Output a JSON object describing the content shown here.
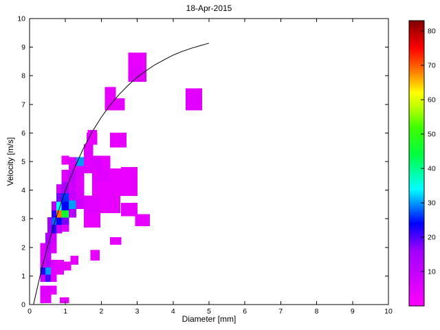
{
  "figure": {
    "title": "18-Apr-2015",
    "background": "#FFFFFF"
  },
  "chart_data": {
    "type": "heatmap",
    "title": "18-Apr-2015",
    "xlabel": "Diameter [mm]",
    "ylabel": "Velocity [m/s]",
    "xlim": [
      0,
      10
    ],
    "ylim": [
      0,
      10
    ],
    "xticks": [
      0,
      1,
      2,
      3,
      4,
      5,
      6,
      7,
      8,
      9,
      10
    ],
    "yticks": [
      0,
      1,
      2,
      3,
      4,
      5,
      6,
      7,
      8,
      9,
      10
    ],
    "grid": false,
    "plot_bg": "#FFFFFF",
    "axis_color": "#000000",
    "colorbar": {
      "position": "right",
      "min": 0,
      "max": 83,
      "ticks": [
        10,
        20,
        30,
        40,
        50,
        60,
        70,
        80
      ],
      "stops": [
        [
          0,
          "#FF00FF"
        ],
        [
          16,
          "#A000FF"
        ],
        [
          24,
          "#0000FF"
        ],
        [
          34,
          "#00FFFF"
        ],
        [
          44,
          "#00FF40"
        ],
        [
          52,
          "#40FF00"
        ],
        [
          58,
          "#C0FF00"
        ],
        [
          62,
          "#FFFF00"
        ],
        [
          68,
          "#FF8000"
        ],
        [
          75,
          "#FF0000"
        ],
        [
          83,
          "#800000"
        ]
      ]
    },
    "cells": [
      [
        0.3,
        0.05,
        0.15,
        0.2,
        4
      ],
      [
        0.45,
        0.05,
        0.15,
        0.2,
        5
      ],
      [
        0.3,
        0.25,
        0.15,
        0.2,
        6
      ],
      [
        0.45,
        0.25,
        0.15,
        0.2,
        5
      ],
      [
        0.85,
        0.05,
        0.25,
        0.2,
        4
      ],
      [
        0.3,
        0.45,
        0.15,
        0.2,
        5
      ],
      [
        0.45,
        0.45,
        0.15,
        0.2,
        6
      ],
      [
        0.6,
        0.35,
        0.15,
        0.3,
        4
      ],
      [
        0.3,
        0.8,
        0.15,
        0.25,
        10
      ],
      [
        0.45,
        0.8,
        0.15,
        0.25,
        20
      ],
      [
        0.3,
        1.05,
        0.15,
        0.25,
        22
      ],
      [
        0.45,
        1.05,
        0.15,
        0.25,
        30
      ],
      [
        0.3,
        1.3,
        0.15,
        0.25,
        8
      ],
      [
        0.45,
        1.3,
        0.15,
        0.25,
        12
      ],
      [
        0.6,
        0.8,
        0.15,
        0.5,
        5
      ],
      [
        0.6,
        1.3,
        0.15,
        0.25,
        6
      ],
      [
        0.75,
        1.05,
        0.2,
        0.5,
        4
      ],
      [
        0.95,
        1.2,
        0.2,
        0.3,
        4
      ],
      [
        1.15,
        1.4,
        0.2,
        0.3,
        4
      ],
      [
        1.7,
        1.55,
        0.25,
        0.35,
        4
      ],
      [
        0.3,
        1.55,
        0.15,
        0.3,
        6
      ],
      [
        0.45,
        1.55,
        0.15,
        0.3,
        10
      ],
      [
        0.3,
        1.85,
        0.15,
        0.3,
        5
      ],
      [
        0.45,
        1.85,
        0.15,
        0.3,
        12
      ],
      [
        0.45,
        2.15,
        0.15,
        0.35,
        14
      ],
      [
        0.6,
        1.8,
        0.15,
        0.35,
        6
      ],
      [
        0.6,
        2.15,
        0.15,
        0.35,
        8
      ],
      [
        2.25,
        2.1,
        0.3,
        0.25,
        4
      ],
      [
        0.5,
        2.5,
        0.12,
        0.3,
        16
      ],
      [
        0.62,
        2.5,
        0.13,
        0.3,
        22
      ],
      [
        0.75,
        2.5,
        0.15,
        0.3,
        10
      ],
      [
        0.9,
        2.55,
        0.2,
        0.25,
        6
      ],
      [
        0.5,
        2.8,
        0.12,
        0.25,
        14
      ],
      [
        0.62,
        2.8,
        0.13,
        0.25,
        28
      ],
      [
        0.75,
        2.8,
        0.15,
        0.25,
        24
      ],
      [
        0.9,
        2.8,
        0.2,
        0.25,
        18
      ],
      [
        0.62,
        3.05,
        0.13,
        0.25,
        22
      ],
      [
        0.75,
        3.05,
        0.15,
        0.25,
        68
      ],
      [
        0.9,
        3.05,
        0.2,
        0.25,
        46
      ],
      [
        1.1,
        3.05,
        0.2,
        0.3,
        12
      ],
      [
        0.62,
        3.3,
        0.13,
        0.3,
        12
      ],
      [
        0.75,
        3.3,
        0.15,
        0.3,
        34
      ],
      [
        0.9,
        3.3,
        0.2,
        0.3,
        24
      ],
      [
        1.1,
        3.35,
        0.2,
        0.3,
        30
      ],
      [
        0.75,
        3.6,
        0.15,
        0.3,
        18
      ],
      [
        0.9,
        3.6,
        0.2,
        0.3,
        26
      ],
      [
        1.1,
        3.65,
        0.2,
        0.3,
        10
      ],
      [
        0.75,
        3.9,
        0.15,
        0.3,
        8
      ],
      [
        0.9,
        3.9,
        0.2,
        0.4,
        14
      ],
      [
        1.1,
        3.95,
        0.2,
        0.35,
        8
      ],
      [
        0.9,
        4.3,
        0.2,
        0.4,
        6
      ],
      [
        1.1,
        4.3,
        0.2,
        0.4,
        10
      ],
      [
        1.3,
        3.35,
        0.22,
        0.35,
        8
      ],
      [
        1.3,
        3.7,
        0.22,
        0.4,
        6
      ],
      [
        1.3,
        4.1,
        0.22,
        0.4,
        5
      ],
      [
        1.3,
        4.5,
        0.22,
        0.35,
        6
      ],
      [
        1.3,
        4.85,
        0.22,
        0.3,
        30
      ],
      [
        1.1,
        4.7,
        0.2,
        0.45,
        6
      ],
      [
        0.9,
        4.9,
        0.2,
        0.3,
        4
      ],
      [
        1.52,
        4.6,
        0.25,
        0.5,
        5
      ],
      [
        1.52,
        5.1,
        0.25,
        0.5,
        5
      ],
      [
        1.6,
        5.6,
        0.28,
        0.4,
        4
      ],
      [
        1.52,
        2.7,
        0.45,
        0.5,
        4
      ],
      [
        1.52,
        3.2,
        0.45,
        0.6,
        5
      ],
      [
        1.97,
        3.2,
        0.55,
        0.6,
        4
      ],
      [
        2.55,
        3.1,
        0.45,
        0.45,
        4
      ],
      [
        2.95,
        2.75,
        0.4,
        0.4,
        4
      ],
      [
        1.75,
        3.8,
        0.45,
        0.5,
        4
      ],
      [
        2.2,
        3.8,
        0.35,
        0.5,
        4
      ],
      [
        2.55,
        3.8,
        0.45,
        0.5,
        4
      ],
      [
        1.75,
        4.3,
        0.45,
        0.45,
        5
      ],
      [
        2.2,
        4.3,
        0.35,
        0.45,
        4
      ],
      [
        2.55,
        4.3,
        0.45,
        0.5,
        4
      ],
      [
        1.75,
        4.75,
        0.25,
        0.45,
        6
      ],
      [
        2.0,
        4.75,
        0.25,
        0.45,
        4
      ],
      [
        2.25,
        5.5,
        0.45,
        0.5,
        4
      ],
      [
        1.62,
        5.75,
        0.25,
        0.35,
        4
      ],
      [
        2.1,
        7.2,
        0.3,
        0.4,
        4
      ],
      [
        2.1,
        6.8,
        0.55,
        0.4,
        4
      ],
      [
        2.75,
        8.3,
        0.5,
        0.5,
        4
      ],
      [
        2.75,
        7.8,
        0.5,
        0.5,
        5
      ],
      [
        4.35,
        6.8,
        0.45,
        0.75,
        5
      ]
    ],
    "curve": {
      "name": "terminal-velocity-fit",
      "color": "#000000",
      "points": [
        [
          0.11,
          0.0
        ],
        [
          0.3,
          1.05
        ],
        [
          0.5,
          2.02
        ],
        [
          0.75,
          3.08
        ],
        [
          1.0,
          4.0
        ],
        [
          1.25,
          4.78
        ],
        [
          1.5,
          5.46
        ],
        [
          1.75,
          6.05
        ],
        [
          2.0,
          6.55
        ],
        [
          2.25,
          6.98
        ],
        [
          2.5,
          7.35
        ],
        [
          2.75,
          7.67
        ],
        [
          3.0,
          7.95
        ],
        [
          3.25,
          8.18
        ],
        [
          3.5,
          8.39
        ],
        [
          3.75,
          8.56
        ],
        [
          4.0,
          8.72
        ],
        [
          4.25,
          8.85
        ],
        [
          4.5,
          8.96
        ],
        [
          4.75,
          9.05
        ],
        [
          5.0,
          9.14
        ]
      ]
    }
  }
}
